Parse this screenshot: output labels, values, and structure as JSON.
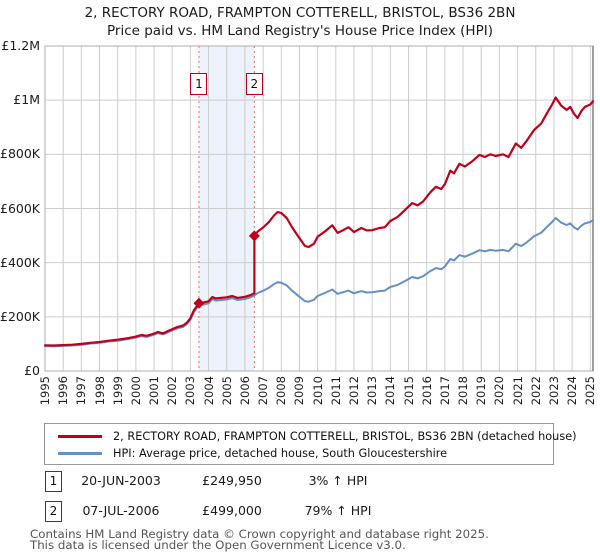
{
  "title": {
    "line1": "2, RECTORY ROAD, FRAMPTON COTTERELL, BRISTOL, BS36 2BN",
    "line2": "Price paid vs. HM Land Registry's House Price Index (HPI)"
  },
  "colors": {
    "property_line": "#c00018",
    "hpi_line": "#6590c5",
    "grid": "#cccccc",
    "plot_border": "#adadad",
    "plot_border_right": "#808080",
    "sale_dotted_line": "#f08080",
    "highlight_band": "#eef2fb",
    "flag_border": "#c00018",
    "footer_text": "#555555"
  },
  "chart_data": {
    "type": "line",
    "title": "Price paid vs. HM Land Registry's House Price Index (HPI)",
    "xlabel": "",
    "ylabel": "",
    "x_range": [
      1995,
      2025.15
    ],
    "y_range": [
      0,
      1200000
    ],
    "grid": true,
    "legend_position": "bottom",
    "x_ticks": [
      "1995",
      "1996",
      "1997",
      "1998",
      "1999",
      "2000",
      "2001",
      "2002",
      "2003",
      "2004",
      "2005",
      "2006",
      "2007",
      "2008",
      "2009",
      "2010",
      "2011",
      "2012",
      "2013",
      "2014",
      "2015",
      "2016",
      "2017",
      "2018",
      "2019",
      "2020",
      "2021",
      "2022",
      "2023",
      "2024",
      "2025"
    ],
    "y_ticks": [
      {
        "value": 0,
        "label": "£0"
      },
      {
        "value": 200000,
        "label": "£200K"
      },
      {
        "value": 400000,
        "label": "£400K"
      },
      {
        "value": 600000,
        "label": "£600K"
      },
      {
        "value": 800000,
        "label": "£800K"
      },
      {
        "value": 1000000,
        "label": "£1M"
      },
      {
        "value": 1200000,
        "label": "£1.2M"
      }
    ],
    "highlight_band": {
      "from": 2003.47,
      "to": 2006.52,
      "color": "#eef2fb"
    },
    "sales": [
      {
        "num": "1",
        "year": 2003.47,
        "price": 249950
      },
      {
        "num": "2",
        "year": 2006.52,
        "price": 499000
      }
    ],
    "series": [
      {
        "name": "2, RECTORY ROAD, FRAMPTON COTTERELL, BRISTOL, BS36 2BN (detached house)",
        "color": "#c00018",
        "width": 2.2,
        "points": [
          [
            1995.0,
            95000
          ],
          [
            1995.5,
            94000
          ],
          [
            1996.0,
            95500
          ],
          [
            1996.5,
            97000
          ],
          [
            1997.0,
            100000
          ],
          [
            1997.5,
            104000
          ],
          [
            1998.0,
            107000
          ],
          [
            1998.5,
            112000
          ],
          [
            1999.0,
            115500
          ],
          [
            1999.5,
            120500
          ],
          [
            2000.0,
            127000
          ],
          [
            2000.3,
            133000
          ],
          [
            2000.6,
            130000
          ],
          [
            2001.0,
            138000
          ],
          [
            2001.2,
            144000
          ],
          [
            2001.5,
            139000
          ],
          [
            2001.8,
            148500
          ],
          [
            2002.0,
            154500
          ],
          [
            2002.3,
            163000
          ],
          [
            2002.6,
            168000
          ],
          [
            2002.8,
            178000
          ],
          [
            2003.0,
            195000
          ],
          [
            2003.2,
            225000
          ],
          [
            2003.47,
            249950
          ],
          [
            2003.7,
            252500
          ],
          [
            2004.0,
            257500
          ],
          [
            2004.2,
            273000
          ],
          [
            2004.4,
            268000
          ],
          [
            2004.7,
            270000
          ],
          [
            2005.0,
            272000
          ],
          [
            2005.3,
            277000
          ],
          [
            2005.6,
            270000
          ],
          [
            2006.0,
            274000
          ],
          [
            2006.3,
            280000
          ],
          [
            2006.52,
            287500
          ],
          [
            2006.52,
            499000
          ],
          [
            2006.7,
            515000
          ],
          [
            2007.0,
            530000
          ],
          [
            2007.3,
            549000
          ],
          [
            2007.6,
            574000
          ],
          [
            2007.8,
            587000
          ],
          [
            2008.0,
            583000
          ],
          [
            2008.3,
            565000
          ],
          [
            2008.6,
            530000
          ],
          [
            2009.0,
            490000
          ],
          [
            2009.3,
            462000
          ],
          [
            2009.5,
            458000
          ],
          [
            2009.8,
            470000
          ],
          [
            2010.0,
            496000
          ],
          [
            2010.4,
            515000
          ],
          [
            2010.8,
            538000
          ],
          [
            2011.1,
            510000
          ],
          [
            2011.4,
            520000
          ],
          [
            2011.7,
            531000
          ],
          [
            2012.0,
            513000
          ],
          [
            2012.4,
            528000
          ],
          [
            2012.7,
            519000
          ],
          [
            2013.0,
            520000
          ],
          [
            2013.4,
            528000
          ],
          [
            2013.7,
            531000
          ],
          [
            2014.0,
            554000
          ],
          [
            2014.4,
            569000
          ],
          [
            2014.8,
            594000
          ],
          [
            2015.2,
            620000
          ],
          [
            2015.5,
            612000
          ],
          [
            2015.8,
            626000
          ],
          [
            2016.2,
            660000
          ],
          [
            2016.5,
            680000
          ],
          [
            2016.8,
            672000
          ],
          [
            2017.0,
            690000
          ],
          [
            2017.3,
            740000
          ],
          [
            2017.5,
            730000
          ],
          [
            2017.8,
            765000
          ],
          [
            2018.1,
            755000
          ],
          [
            2018.5,
            774000
          ],
          [
            2018.9,
            798000
          ],
          [
            2019.2,
            790000
          ],
          [
            2019.5,
            800000
          ],
          [
            2019.8,
            794000
          ],
          [
            2020.2,
            800000
          ],
          [
            2020.5,
            790000
          ],
          [
            2020.9,
            840000
          ],
          [
            2021.2,
            824000
          ],
          [
            2021.5,
            850000
          ],
          [
            2021.9,
            889000
          ],
          [
            2022.3,
            914000
          ],
          [
            2022.6,
            950000
          ],
          [
            2022.9,
            984000
          ],
          [
            2023.1,
            1010000
          ],
          [
            2023.4,
            980000
          ],
          [
            2023.7,
            964000
          ],
          [
            2023.9,
            975000
          ],
          [
            2024.1,
            950000
          ],
          [
            2024.3,
            934000
          ],
          [
            2024.5,
            959000
          ],
          [
            2024.7,
            975000
          ],
          [
            2025.0,
            984000
          ],
          [
            2025.15,
            996000
          ]
        ]
      },
      {
        "name": "HPI: Average price, detached house, South Gloucestershire",
        "color": "#6590c5",
        "width": 2,
        "points": [
          [
            1995.0,
            92000
          ],
          [
            1995.5,
            91000
          ],
          [
            1996.0,
            92500
          ],
          [
            1996.5,
            94000
          ],
          [
            1997.0,
            97000
          ],
          [
            1997.5,
            101000
          ],
          [
            1998.0,
            104000
          ],
          [
            1998.5,
            109000
          ],
          [
            1999.0,
            112000
          ],
          [
            1999.5,
            117000
          ],
          [
            2000.0,
            123000
          ],
          [
            2000.3,
            129000
          ],
          [
            2000.6,
            126000
          ],
          [
            2001.0,
            134000
          ],
          [
            2001.2,
            140000
          ],
          [
            2001.5,
            135000
          ],
          [
            2001.8,
            144000
          ],
          [
            2002.0,
            150000
          ],
          [
            2002.3,
            158000
          ],
          [
            2002.6,
            163000
          ],
          [
            2002.8,
            173000
          ],
          [
            2003.0,
            189000
          ],
          [
            2003.2,
            218000
          ],
          [
            2003.47,
            242500
          ],
          [
            2003.7,
            245000
          ],
          [
            2004.0,
            250000
          ],
          [
            2004.2,
            265000
          ],
          [
            2004.4,
            260000
          ],
          [
            2004.7,
            262000
          ],
          [
            2005.0,
            264000
          ],
          [
            2005.3,
            269000
          ],
          [
            2005.6,
            262000
          ],
          [
            2006.0,
            266000
          ],
          [
            2006.3,
            272000
          ],
          [
            2006.52,
            279000
          ],
          [
            2006.7,
            288000
          ],
          [
            2007.0,
            296000
          ],
          [
            2007.3,
            307000
          ],
          [
            2007.6,
            321000
          ],
          [
            2007.8,
            328000
          ],
          [
            2008.0,
            326000
          ],
          [
            2008.3,
            316000
          ],
          [
            2008.6,
            296000
          ],
          [
            2009.0,
            274000
          ],
          [
            2009.3,
            258000
          ],
          [
            2009.5,
            256000
          ],
          [
            2009.8,
            263000
          ],
          [
            2010.0,
            277000
          ],
          [
            2010.4,
            288000
          ],
          [
            2010.8,
            301000
          ],
          [
            2011.1,
            285000
          ],
          [
            2011.4,
            291000
          ],
          [
            2011.7,
            297000
          ],
          [
            2012.0,
            287000
          ],
          [
            2012.4,
            295000
          ],
          [
            2012.7,
            290000
          ],
          [
            2013.0,
            291000
          ],
          [
            2013.4,
            295000
          ],
          [
            2013.7,
            297000
          ],
          [
            2014.0,
            310000
          ],
          [
            2014.4,
            318000
          ],
          [
            2014.8,
            332000
          ],
          [
            2015.2,
            347000
          ],
          [
            2015.5,
            342000
          ],
          [
            2015.8,
            350000
          ],
          [
            2016.2,
            369000
          ],
          [
            2016.5,
            380000
          ],
          [
            2016.8,
            376000
          ],
          [
            2017.0,
            386000
          ],
          [
            2017.3,
            414000
          ],
          [
            2017.5,
            408000
          ],
          [
            2017.8,
            428000
          ],
          [
            2018.1,
            422000
          ],
          [
            2018.5,
            433000
          ],
          [
            2018.9,
            446000
          ],
          [
            2019.2,
            442000
          ],
          [
            2019.5,
            447000
          ],
          [
            2019.8,
            444000
          ],
          [
            2020.2,
            447000
          ],
          [
            2020.5,
            442000
          ],
          [
            2020.9,
            470000
          ],
          [
            2021.2,
            461000
          ],
          [
            2021.5,
            475000
          ],
          [
            2021.9,
            497000
          ],
          [
            2022.3,
            511000
          ],
          [
            2022.6,
            531000
          ],
          [
            2022.9,
            550000
          ],
          [
            2023.1,
            565000
          ],
          [
            2023.4,
            548000
          ],
          [
            2023.7,
            539000
          ],
          [
            2023.9,
            545000
          ],
          [
            2024.1,
            531000
          ],
          [
            2024.3,
            522000
          ],
          [
            2024.5,
            536000
          ],
          [
            2024.7,
            545000
          ],
          [
            2025.0,
            550000
          ],
          [
            2025.15,
            557000
          ]
        ]
      }
    ]
  },
  "legend": {
    "items": [
      {
        "label": "2, RECTORY ROAD, FRAMPTON COTTERELL, BRISTOL, BS36 2BN (detached house)",
        "color": "#c00018"
      },
      {
        "label": "HPI: Average price, detached house, South Gloucestershire",
        "color": "#6590c5"
      }
    ]
  },
  "annotations": [
    {
      "num": "1",
      "date": "20-JUN-2003",
      "price": "£249,950",
      "hpi": "3% ↑ HPI"
    },
    {
      "num": "2",
      "date": "07-JUL-2006",
      "price": "£499,000",
      "hpi": "79% ↑ HPI"
    }
  ],
  "footer": {
    "line1": "Contains HM Land Registry data © Crown copyright and database right 2025.",
    "line2": "This data is licensed under the Open Government Licence v3.0."
  }
}
